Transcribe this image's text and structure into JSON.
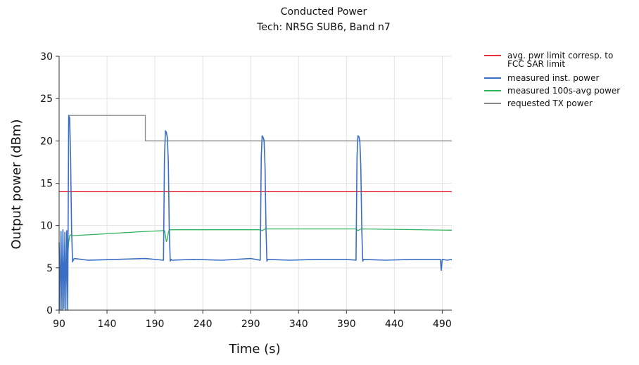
{
  "chart_data": {
    "type": "line",
    "title": "Conducted Power",
    "subtitle": "Tech: NR5G SUB6, Band n7",
    "xlabel": "Time (s)",
    "ylabel": "Output power (dBm)",
    "xlim": [
      90,
      500
    ],
    "ylim": [
      0,
      30
    ],
    "x_ticks": [
      90,
      140,
      190,
      240,
      290,
      340,
      390,
      440,
      490
    ],
    "y_ticks": [
      0,
      5,
      10,
      15,
      20,
      25,
      30
    ],
    "grid": true,
    "legend_position": "right-top",
    "series": [
      {
        "name": "avg. pwr limit corresp. to FCC SAR limit",
        "legend_lines": [
          "avg. pwr limit corresp. to",
          "FCC SAR limit"
        ],
        "color": "#e8303a",
        "x": [
          90,
          500
        ],
        "y": [
          14,
          14
        ]
      },
      {
        "name": "measured inst. power",
        "legend_lines": [
          "measured inst. power"
        ],
        "color": "#3a6fc4",
        "x": [
          90,
          91,
          92,
          93,
          94,
          95,
          96,
          97,
          98,
          99,
          100,
          101,
          102,
          103,
          104,
          105,
          106,
          120,
          150,
          180,
          199,
          200,
          201,
          202,
          203,
          204,
          205,
          206,
          207,
          208,
          230,
          260,
          290,
          300,
          301,
          302,
          303,
          304,
          305,
          306,
          307,
          308,
          330,
          360,
          390,
          400,
          401,
          402,
          403,
          404,
          405,
          406,
          407,
          408,
          430,
          460,
          488,
          489,
          490,
          495,
          500
        ],
        "y": [
          8,
          0,
          9.3,
          0,
          9.5,
          0.2,
          9.2,
          0,
          9.4,
          0,
          23,
          22.7,
          18,
          9.6,
          5.7,
          6,
          6.1,
          5.9,
          6,
          6.1,
          5.9,
          18,
          21.2,
          21,
          20.4,
          17.5,
          9.6,
          5.8,
          6,
          5.9,
          6,
          5.9,
          6.1,
          5.9,
          18,
          20.6,
          20.4,
          20.1,
          17,
          9.5,
          5.8,
          6,
          5.9,
          6,
          6,
          5.9,
          18,
          20.6,
          20.5,
          20,
          17,
          9.6,
          5.8,
          6,
          5.9,
          6,
          6,
          4.7,
          6,
          5.9,
          6
        ]
      },
      {
        "name": "measured 100s-avg power",
        "legend_lines": [
          "measured 100s-avg power"
        ],
        "color": "#2fb35a",
        "x": [
          90,
          98,
          100,
          101,
          102,
          104,
          120,
          150,
          180,
          200,
          201,
          202,
          203,
          204,
          205,
          207,
          300,
          302,
          305,
          400,
          402,
          405,
          500
        ],
        "y": [
          4.5,
          4.5,
          8,
          8.8,
          8.9,
          8.8,
          8.9,
          9.1,
          9.3,
          9.4,
          8.8,
          8.1,
          8.4,
          9.2,
          9.5,
          9.5,
          9.5,
          9.4,
          9.6,
          9.6,
          9.4,
          9.6,
          9.45
        ]
      },
      {
        "name": "requested TX power",
        "legend_lines": [
          "requested TX power"
        ],
        "color": "#8a8a8a",
        "x": [
          100,
          180,
          180,
          500
        ],
        "y": [
          23,
          23,
          20,
          20
        ]
      }
    ]
  }
}
